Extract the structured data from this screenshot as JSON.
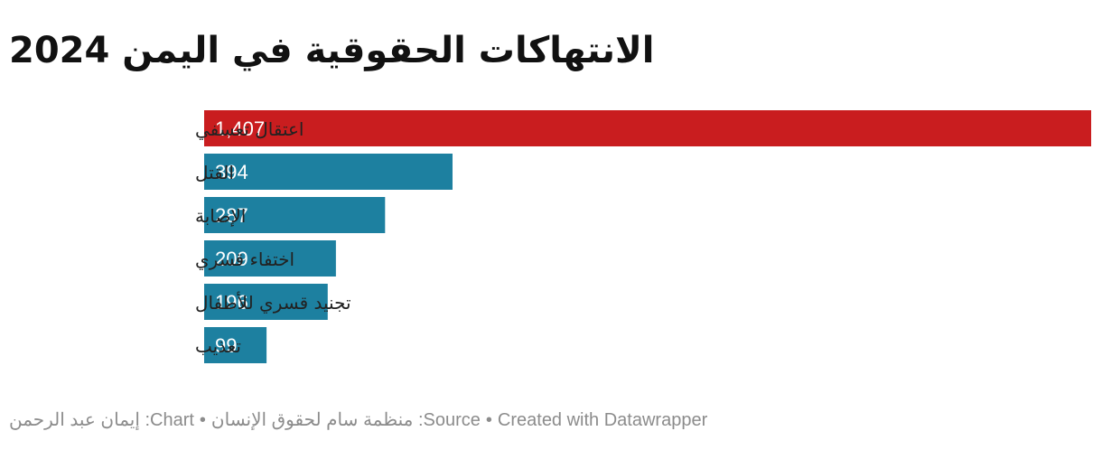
{
  "chart_data": {
    "type": "bar",
    "orientation": "horizontal",
    "title": "الانتهاكات الحقوقية في اليمن 2024",
    "categories": [
      "اعتقال تعسفي",
      "القتل",
      "الإصابة",
      "اختفاء قسري",
      "تجنيد قسري للأطفال",
      "تعذيب"
    ],
    "values": [
      1407,
      394,
      287,
      209,
      196,
      99
    ],
    "value_labels": [
      "1,407",
      "394",
      "287",
      "209",
      "196",
      "99"
    ],
    "xlim": [
      0,
      1407
    ],
    "colors": {
      "highlight": "#c91d1f",
      "default": "#1d80a0"
    },
    "highlight_index": 0,
    "grid": false,
    "legend": "none"
  },
  "footer": {
    "chart_credit": "Chart: إيمان عبد الرحمن",
    "source": "Source: منظمة سام لحقوق الإنسان",
    "created_with": "Created with Datawrapper",
    "separator": "•"
  }
}
